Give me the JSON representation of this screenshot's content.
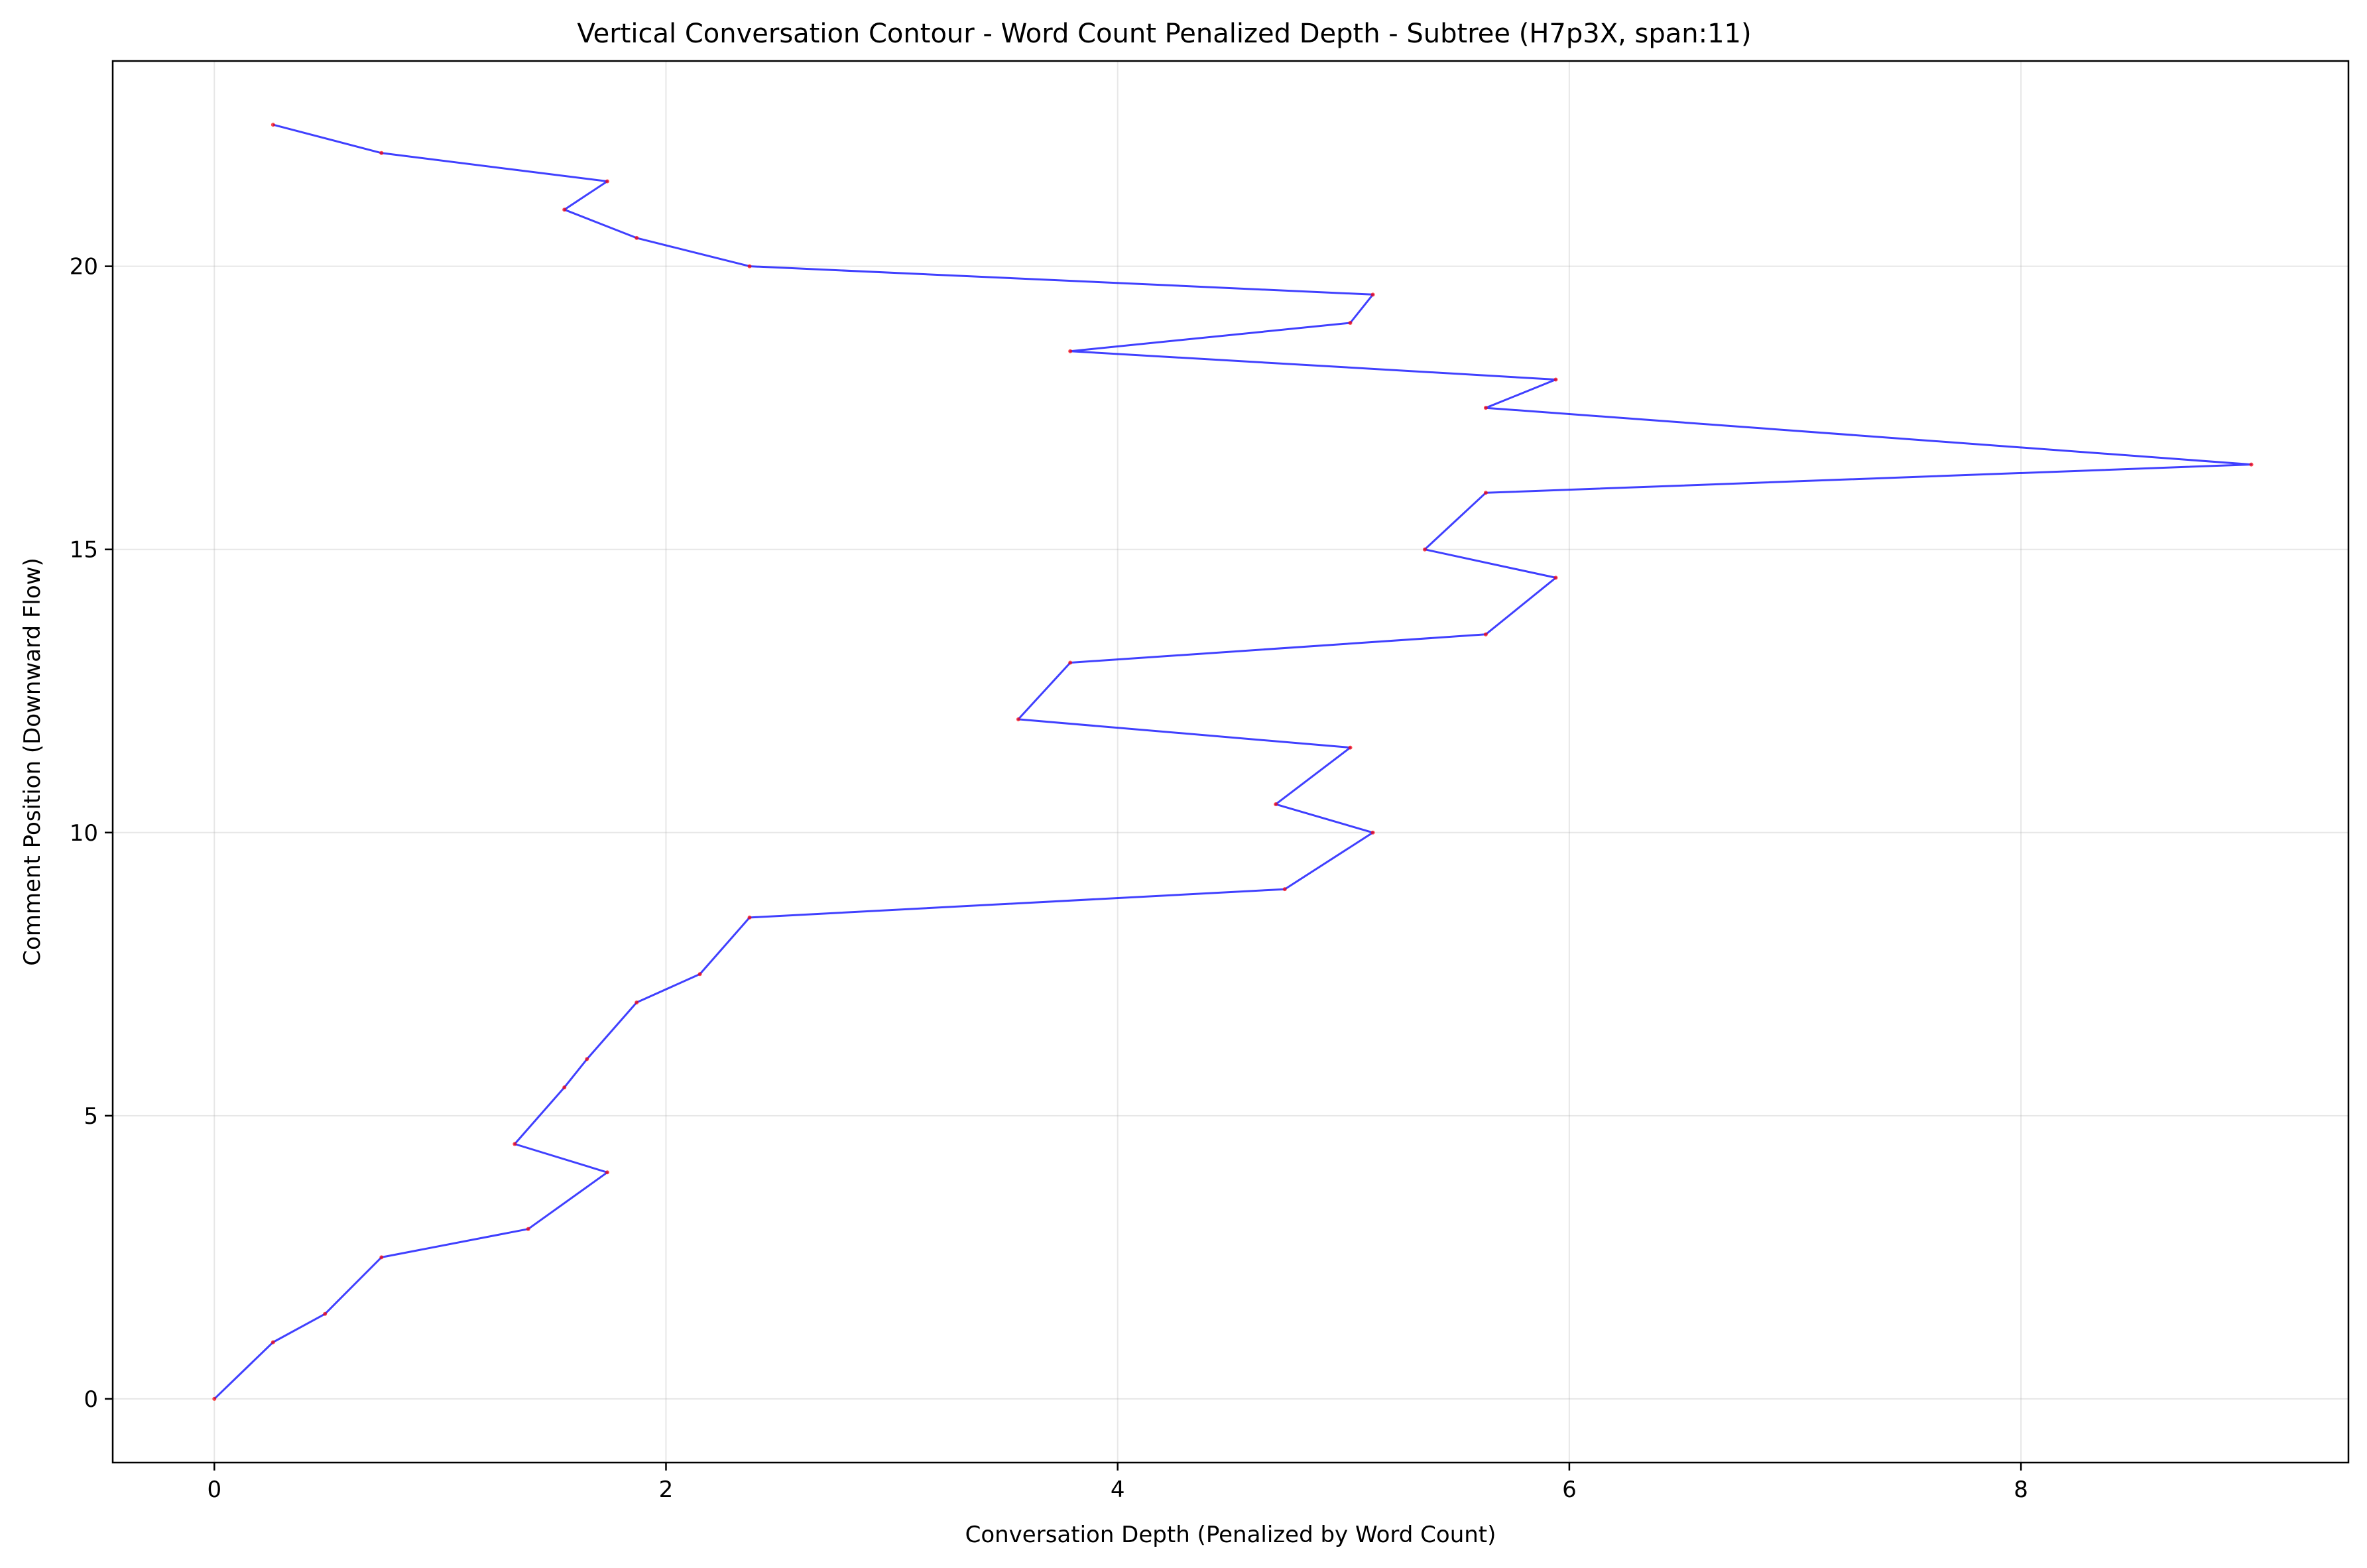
{
  "chart_data": {
    "type": "line",
    "title": "Vertical Conversation Contour - Word Count Penalized Depth - Subtree (H7p3X, span:11)",
    "xlabel": "Conversation Depth (Penalized by Word Count)",
    "ylabel": "Comment Position (Downward Flow)",
    "xlim": [
      -0.45,
      9.45
    ],
    "ylim": [
      -1.125,
      23.625
    ],
    "xticks": [
      0,
      2,
      4,
      6,
      8
    ],
    "yticks": [
      0,
      5,
      10,
      15,
      20
    ],
    "grid": true,
    "legend": "none",
    "line_color": "#0000ff",
    "marker_color": "#ff0000",
    "series": [
      {
        "x": [
          0,
          0.26,
          0.49,
          0.74,
          1.39,
          1.74,
          1.33,
          1.55,
          1.65,
          1.87,
          2.15,
          2.37,
          4.74,
          5.13,
          4.7,
          5.03,
          3.56,
          3.79,
          5.63,
          5.94,
          5.36,
          5.63,
          9.02,
          5.63,
          5.94,
          3.79,
          5.03,
          5.13,
          2.37,
          1.87,
          1.55,
          1.74,
          0.74,
          0.26
        ],
        "y": [
          0,
          1,
          1.5,
          2.5,
          3,
          4,
          4.5,
          5.5,
          6,
          7,
          7.5,
          8.5,
          9,
          10,
          10.5,
          11.5,
          12,
          13,
          13.5,
          14.5,
          15,
          16,
          16.5,
          17.5,
          18,
          18.5,
          19,
          19.5,
          20,
          20.5,
          21,
          21.5,
          22,
          22.5
        ]
      }
    ]
  }
}
